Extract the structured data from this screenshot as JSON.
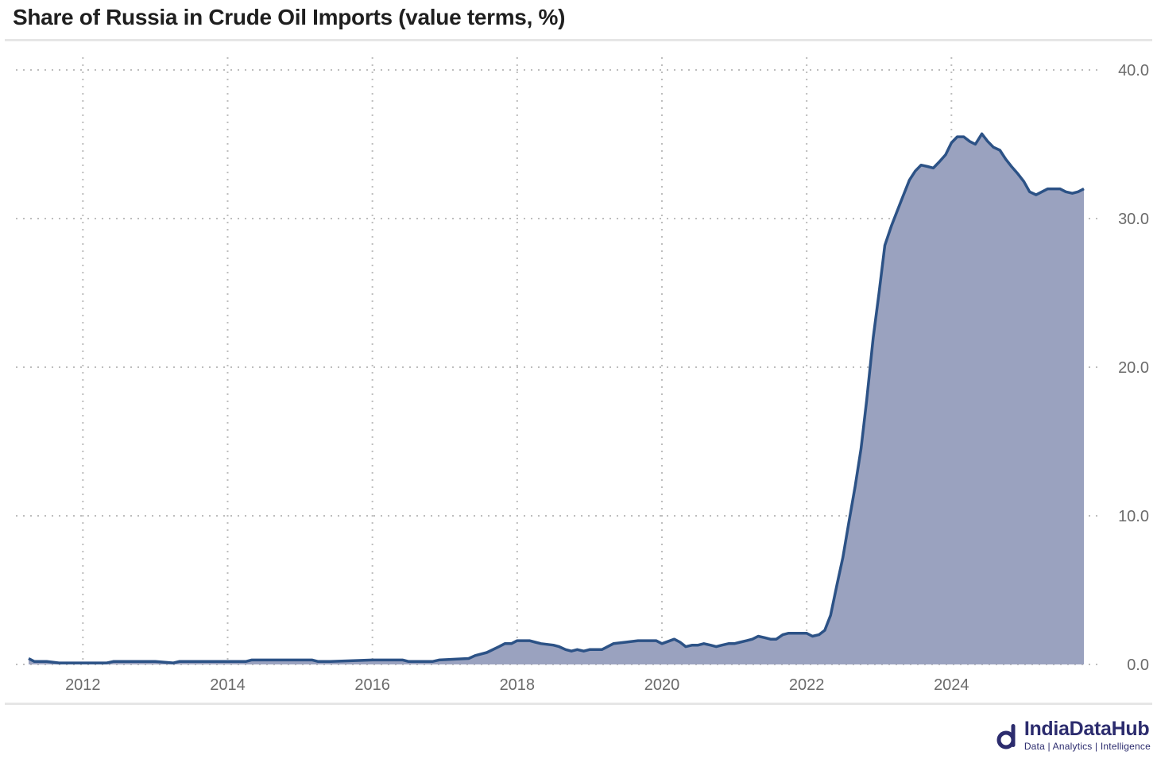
{
  "title": "Share of Russia in Crude Oil Imports (value terms, %)",
  "brand": {
    "name": "IndiaDataHub",
    "tagline": "Data | Analytics | Intelligence"
  },
  "colors": {
    "line": "#2c5286",
    "area": "#9aa2bf",
    "grid": "#bdbdbd",
    "brand": "#2c2c6e"
  },
  "chart_data": {
    "type": "area",
    "title": "Share of Russia in Crude Oil Imports (value terms, %)",
    "xlabel": "",
    "ylabel": "",
    "x_ticks": [
      "2012",
      "2014",
      "2016",
      "2018",
      "2020",
      "2022",
      "2024"
    ],
    "y_ticks": [
      "0.0",
      "10.0",
      "20.0",
      "30.0",
      "40.0"
    ],
    "xlim": [
      2011.25,
      2025.83
    ],
    "ylim": [
      0,
      40
    ],
    "y_axis_position": "right",
    "grid": true,
    "legend": "none",
    "series": [
      {
        "x": [
          2011.25,
          2011.33,
          2011.5,
          2011.67,
          2012.0,
          2012.33,
          2012.42,
          2013.0,
          2013.25,
          2013.33,
          2014.0,
          2014.25,
          2014.33,
          2015.0,
          2015.17,
          2015.25,
          2015.42,
          2016.0,
          2016.33,
          2016.42,
          2016.5,
          2016.83,
          2016.92,
          2017.33,
          2017.42,
          2017.58,
          2017.75,
          2017.83,
          2017.92,
          2018.0,
          2018.17,
          2018.25,
          2018.33,
          2018.5,
          2018.58,
          2018.67,
          2018.75,
          2018.83,
          2018.92,
          2019.0,
          2019.08,
          2019.17,
          2019.25,
          2019.33,
          2019.5,
          2019.67,
          2019.83,
          2019.92,
          2020.0,
          2020.17,
          2020.25,
          2020.33,
          2020.42,
          2020.5,
          2020.58,
          2020.67,
          2020.75,
          2020.83,
          2020.92,
          2021.0,
          2021.08,
          2021.17,
          2021.25,
          2021.33,
          2021.42,
          2021.5,
          2021.58,
          2021.67,
          2021.75,
          2021.83,
          2021.92,
          2022.0,
          2022.08,
          2022.17,
          2022.25,
          2022.33,
          2022.42,
          2022.5,
          2022.58,
          2022.67,
          2022.75,
          2022.83,
          2022.92,
          2023.0,
          2023.08,
          2023.17,
          2023.25,
          2023.33,
          2023.42,
          2023.5,
          2023.58,
          2023.67,
          2023.75,
          2023.83,
          2023.92,
          2024.0,
          2024.08,
          2024.17,
          2024.25,
          2024.33,
          2024.42,
          2024.5,
          2024.58,
          2024.67,
          2024.75,
          2024.83,
          2024.92,
          2025.0,
          2025.08,
          2025.17,
          2025.25,
          2025.33,
          2025.42,
          2025.5,
          2025.58,
          2025.67,
          2025.75,
          2025.83
        ],
        "values": [
          0.4,
          0.2,
          0.2,
          0.1,
          0.1,
          0.1,
          0.2,
          0.2,
          0.1,
          0.2,
          0.2,
          0.2,
          0.3,
          0.3,
          0.3,
          0.2,
          0.2,
          0.3,
          0.3,
          0.3,
          0.2,
          0.2,
          0.3,
          0.4,
          0.6,
          0.8,
          1.2,
          1.4,
          1.4,
          1.6,
          1.6,
          1.5,
          1.4,
          1.3,
          1.2,
          1.0,
          0.9,
          1.0,
          0.9,
          1.0,
          1.0,
          1.0,
          1.2,
          1.4,
          1.5,
          1.6,
          1.6,
          1.6,
          1.4,
          1.7,
          1.5,
          1.2,
          1.3,
          1.3,
          1.4,
          1.3,
          1.2,
          1.3,
          1.4,
          1.4,
          1.5,
          1.6,
          1.7,
          1.9,
          1.8,
          1.7,
          1.7,
          2.0,
          2.1,
          2.1,
          2.1,
          2.1,
          1.9,
          2.0,
          2.3,
          3.3,
          5.4,
          7.2,
          9.5,
          12.0,
          14.5,
          17.8,
          22.0,
          25.0,
          28.2,
          29.5,
          30.5,
          31.5,
          32.6,
          33.2,
          33.6,
          33.5,
          33.4,
          33.8,
          34.3,
          35.1,
          35.5,
          35.5,
          35.2,
          35.0,
          35.7,
          35.2,
          34.8,
          34.6,
          34.0,
          33.5,
          33.0,
          32.5,
          31.8,
          31.6,
          31.8,
          32.0,
          32.0,
          32.0,
          31.8,
          31.7,
          31.8,
          32.0
        ]
      }
    ]
  }
}
